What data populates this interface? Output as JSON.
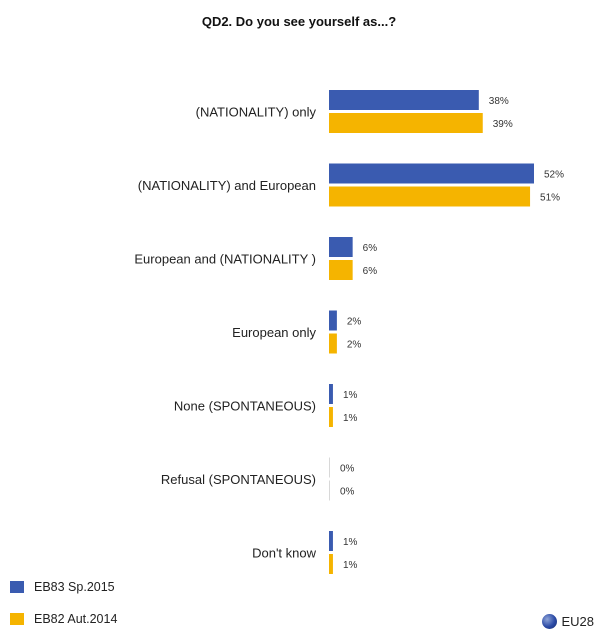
{
  "chart_data": {
    "type": "bar",
    "title": "QD2. Do you see yourself as...?",
    "categories": [
      "(NATIONALITY) only",
      "(NATIONALITY) and European",
      "European and (NATIONALITY )",
      "European only",
      "None (SPONTANEOUS)",
      "Refusal (SPONTANEOUS)",
      "Don't know"
    ],
    "series": [
      {
        "name": "EB83 Sp.2015",
        "color": "#3a5bb0",
        "values": [
          38,
          52,
          6,
          2,
          1,
          0,
          1
        ],
        "labels": [
          "38%",
          "52%",
          "6%",
          "2%",
          "1%",
          "0%",
          "1%"
        ]
      },
      {
        "name": "EB82 Aut.2014",
        "color": "#f5b400",
        "values": [
          39,
          51,
          6,
          2,
          1,
          0,
          1
        ],
        "labels": [
          "39%",
          "51%",
          "6%",
          "2%",
          "1%",
          "0%",
          "1%"
        ]
      }
    ],
    "xlim": [
      0,
      52
    ],
    "orientation": "horizontal",
    "legend_position": "bottom-left",
    "grid": false
  },
  "footer": {
    "region": "EU28"
  }
}
